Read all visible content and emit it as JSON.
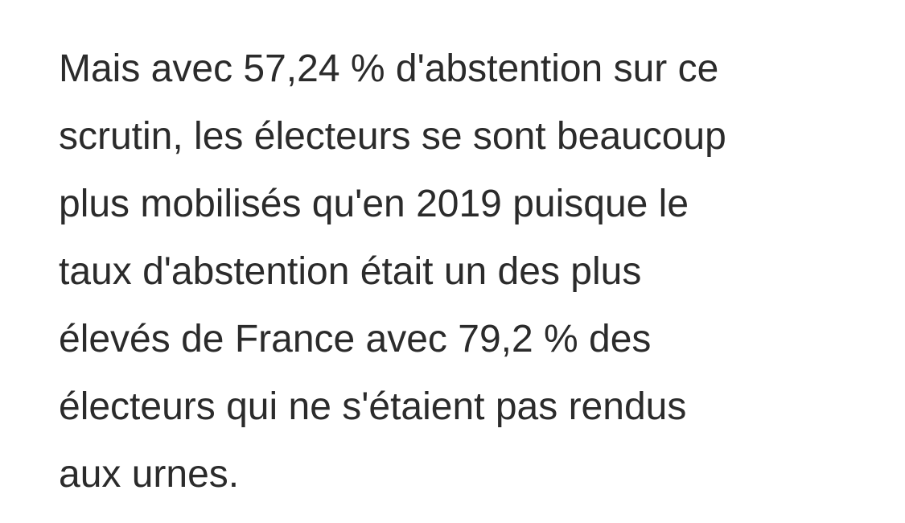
{
  "article": {
    "paragraph": {
      "lines": [
        "Mais avec 57,24 % d'abstention sur ce",
        "scrutin, les électeurs se sont beaucoup",
        "plus mobilisés qu'en 2019 puisque le",
        "taux d'abstention était un des plus",
        "élevés de France avec 79,2 % des",
        "électeurs qui ne s'étaient pas rendus",
        "aux urnes."
      ]
    }
  },
  "colors": {
    "text": "#2b2b2b",
    "background": "#ffffff"
  }
}
